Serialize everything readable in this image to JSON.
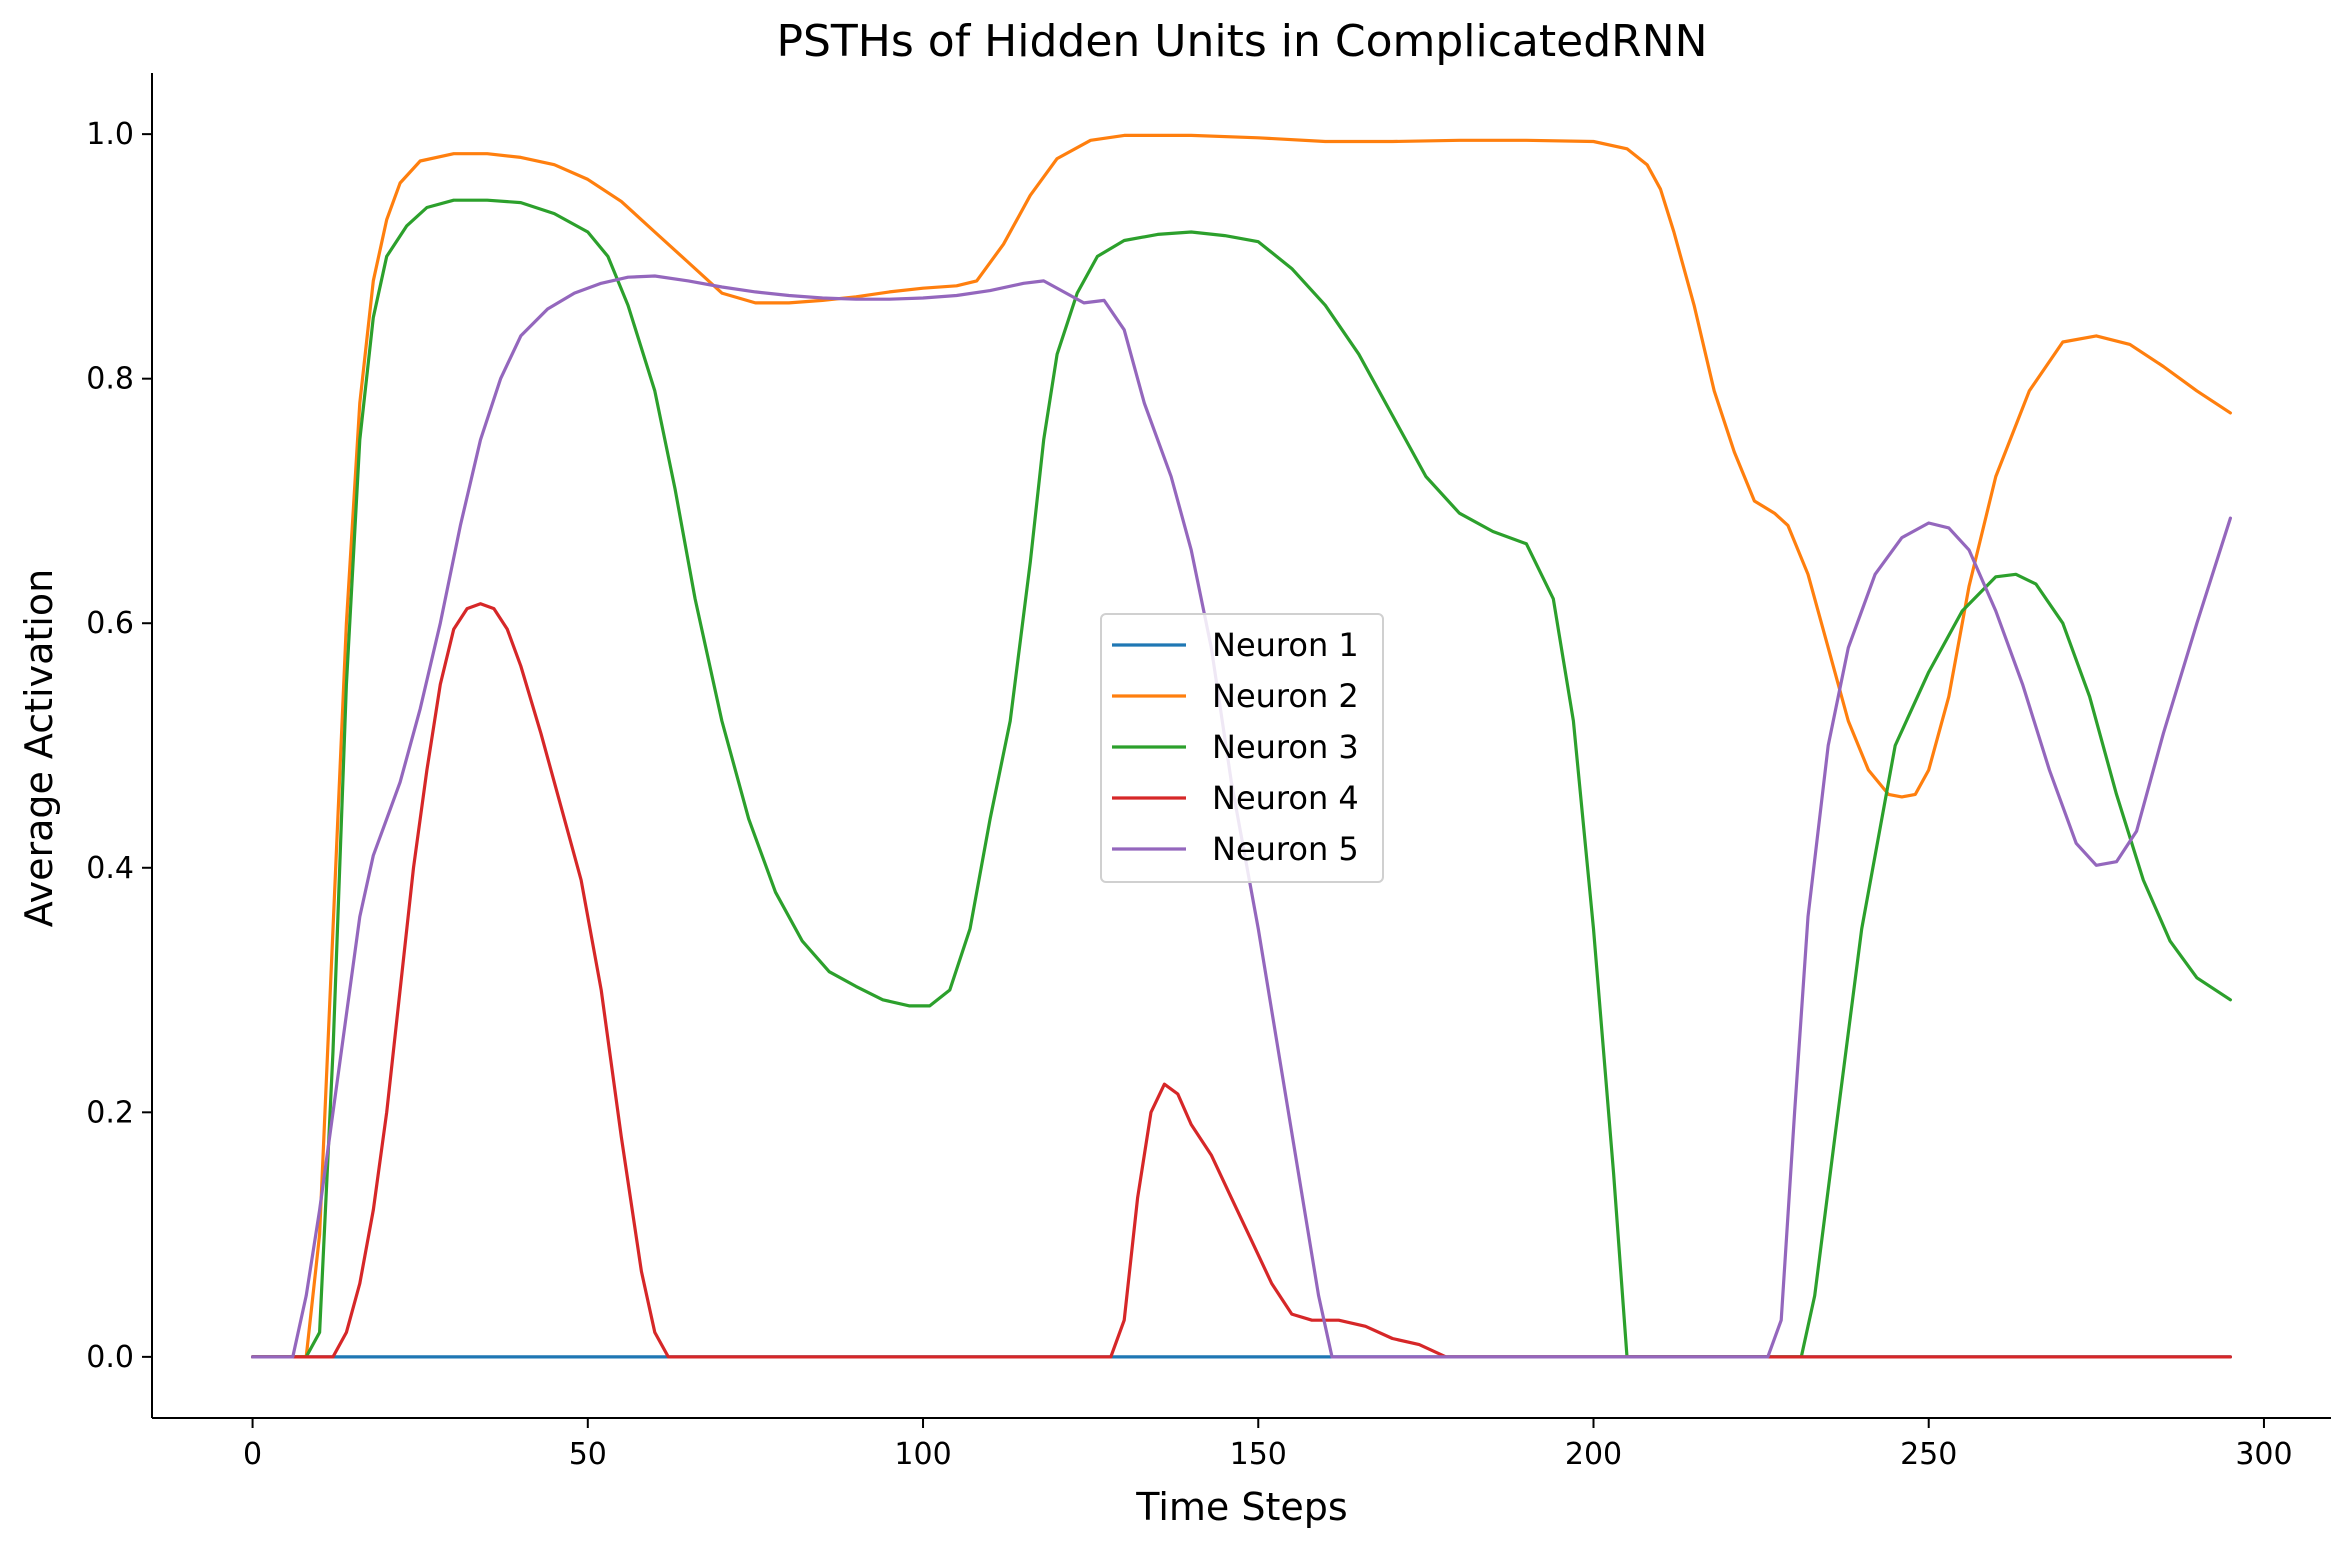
{
  "chart_data": {
    "type": "line",
    "title": "PSTHs of Hidden Units in ComplicatedRNN",
    "xlabel": "Time Steps",
    "ylabel": "Average Activation",
    "xlim": [
      -15,
      310
    ],
    "ylim": [
      -0.05,
      1.05
    ],
    "xticks": [
      0,
      50,
      100,
      150,
      200,
      250,
      300
    ],
    "yticks": [
      0.0,
      0.2,
      0.4,
      0.6,
      0.8,
      1.0
    ],
    "xtick_labels": [
      "0",
      "50",
      "100",
      "150",
      "200",
      "250",
      "300"
    ],
    "ytick_labels": [
      "0.0",
      "0.2",
      "0.4",
      "0.6",
      "0.8",
      "1.0"
    ],
    "grid": false,
    "legend_position": "center",
    "series": [
      {
        "name": "Neuron 1",
        "color": "#1f77b4",
        "points": [
          [
            0,
            0.0
          ],
          [
            295,
            0.0
          ]
        ]
      },
      {
        "name": "Neuron 2",
        "color": "#ff7f0e",
        "points": [
          [
            0,
            0.0
          ],
          [
            8,
            0.0
          ],
          [
            10,
            0.1
          ],
          [
            12,
            0.35
          ],
          [
            14,
            0.6
          ],
          [
            16,
            0.78
          ],
          [
            18,
            0.88
          ],
          [
            20,
            0.93
          ],
          [
            22,
            0.96
          ],
          [
            25,
            0.978
          ],
          [
            30,
            0.984
          ],
          [
            35,
            0.984
          ],
          [
            40,
            0.981
          ],
          [
            45,
            0.975
          ],
          [
            50,
            0.963
          ],
          [
            55,
            0.945
          ],
          [
            60,
            0.92
          ],
          [
            65,
            0.895
          ],
          [
            70,
            0.87
          ],
          [
            75,
            0.862
          ],
          [
            80,
            0.862
          ],
          [
            85,
            0.864
          ],
          [
            90,
            0.867
          ],
          [
            95,
            0.871
          ],
          [
            100,
            0.874
          ],
          [
            105,
            0.876
          ],
          [
            108,
            0.88
          ],
          [
            112,
            0.91
          ],
          [
            116,
            0.95
          ],
          [
            120,
            0.98
          ],
          [
            125,
            0.995
          ],
          [
            130,
            0.999
          ],
          [
            140,
            0.999
          ],
          [
            150,
            0.997
          ],
          [
            160,
            0.994
          ],
          [
            170,
            0.994
          ],
          [
            180,
            0.995
          ],
          [
            190,
            0.995
          ],
          [
            200,
            0.994
          ],
          [
            205,
            0.988
          ],
          [
            208,
            0.975
          ],
          [
            210,
            0.955
          ],
          [
            212,
            0.92
          ],
          [
            215,
            0.86
          ],
          [
            218,
            0.79
          ],
          [
            221,
            0.74
          ],
          [
            224,
            0.7
          ],
          [
            227,
            0.69
          ],
          [
            229,
            0.68
          ],
          [
            232,
            0.64
          ],
          [
            235,
            0.58
          ],
          [
            238,
            0.52
          ],
          [
            241,
            0.48
          ],
          [
            244,
            0.46
          ],
          [
            246,
            0.458
          ],
          [
            248,
            0.46
          ],
          [
            250,
            0.48
          ],
          [
            253,
            0.54
          ],
          [
            256,
            0.63
          ],
          [
            260,
            0.72
          ],
          [
            265,
            0.79
          ],
          [
            270,
            0.83
          ],
          [
            275,
            0.835
          ],
          [
            280,
            0.828
          ],
          [
            285,
            0.81
          ],
          [
            290,
            0.79
          ],
          [
            295,
            0.772
          ]
        ]
      },
      {
        "name": "Neuron 3",
        "color": "#2ca02c",
        "points": [
          [
            0,
            0.0
          ],
          [
            8,
            0.0
          ],
          [
            10,
            0.02
          ],
          [
            12,
            0.25
          ],
          [
            14,
            0.55
          ],
          [
            16,
            0.75
          ],
          [
            18,
            0.85
          ],
          [
            20,
            0.9
          ],
          [
            23,
            0.925
          ],
          [
            26,
            0.94
          ],
          [
            30,
            0.946
          ],
          [
            35,
            0.946
          ],
          [
            40,
            0.944
          ],
          [
            45,
            0.935
          ],
          [
            50,
            0.92
          ],
          [
            53,
            0.9
          ],
          [
            56,
            0.86
          ],
          [
            60,
            0.79
          ],
          [
            63,
            0.71
          ],
          [
            66,
            0.62
          ],
          [
            70,
            0.52
          ],
          [
            74,
            0.44
          ],
          [
            78,
            0.38
          ],
          [
            82,
            0.34
          ],
          [
            86,
            0.315
          ],
          [
            90,
            0.303
          ],
          [
            94,
            0.292
          ],
          [
            98,
            0.287
          ],
          [
            101,
            0.287
          ],
          [
            104,
            0.3
          ],
          [
            107,
            0.35
          ],
          [
            110,
            0.44
          ],
          [
            113,
            0.52
          ],
          [
            116,
            0.65
          ],
          [
            118,
            0.75
          ],
          [
            120,
            0.82
          ],
          [
            123,
            0.87
          ],
          [
            126,
            0.9
          ],
          [
            130,
            0.913
          ],
          [
            135,
            0.918
          ],
          [
            140,
            0.92
          ],
          [
            145,
            0.917
          ],
          [
            150,
            0.912
          ],
          [
            155,
            0.89
          ],
          [
            160,
            0.86
          ],
          [
            165,
            0.82
          ],
          [
            170,
            0.77
          ],
          [
            175,
            0.72
          ],
          [
            180,
            0.69
          ],
          [
            185,
            0.675
          ],
          [
            190,
            0.665
          ],
          [
            194,
            0.62
          ],
          [
            197,
            0.52
          ],
          [
            200,
            0.35
          ],
          [
            203,
            0.15
          ],
          [
            205,
            0.0
          ],
          [
            220,
            0.0
          ],
          [
            231,
            0.0
          ],
          [
            233,
            0.05
          ],
          [
            236,
            0.18
          ],
          [
            240,
            0.35
          ],
          [
            245,
            0.5
          ],
          [
            250,
            0.56
          ],
          [
            255,
            0.61
          ],
          [
            260,
            0.638
          ],
          [
            263,
            0.64
          ],
          [
            266,
            0.632
          ],
          [
            270,
            0.6
          ],
          [
            274,
            0.54
          ],
          [
            278,
            0.46
          ],
          [
            282,
            0.39
          ],
          [
            286,
            0.34
          ],
          [
            290,
            0.31
          ],
          [
            295,
            0.292
          ]
        ]
      },
      {
        "name": "Neuron 4",
        "color": "#d62728",
        "points": [
          [
            0,
            0.0
          ],
          [
            12,
            0.0
          ],
          [
            14,
            0.02
          ],
          [
            16,
            0.06
          ],
          [
            18,
            0.12
          ],
          [
            20,
            0.2
          ],
          [
            22,
            0.3
          ],
          [
            24,
            0.4
          ],
          [
            26,
            0.48
          ],
          [
            28,
            0.55
          ],
          [
            30,
            0.595
          ],
          [
            32,
            0.612
          ],
          [
            34,
            0.616
          ],
          [
            36,
            0.612
          ],
          [
            38,
            0.595
          ],
          [
            40,
            0.565
          ],
          [
            43,
            0.51
          ],
          [
            46,
            0.45
          ],
          [
            49,
            0.39
          ],
          [
            52,
            0.3
          ],
          [
            55,
            0.18
          ],
          [
            58,
            0.07
          ],
          [
            60,
            0.02
          ],
          [
            62,
            0.0
          ],
          [
            128,
            0.0
          ],
          [
            130,
            0.03
          ],
          [
            132,
            0.13
          ],
          [
            134,
            0.2
          ],
          [
            136,
            0.223
          ],
          [
            138,
            0.215
          ],
          [
            140,
            0.19
          ],
          [
            143,
            0.165
          ],
          [
            146,
            0.13
          ],
          [
            149,
            0.095
          ],
          [
            152,
            0.06
          ],
          [
            155,
            0.035
          ],
          [
            158,
            0.03
          ],
          [
            162,
            0.03
          ],
          [
            166,
            0.025
          ],
          [
            170,
            0.015
          ],
          [
            174,
            0.01
          ],
          [
            178,
            0.0
          ],
          [
            295,
            0.0
          ]
        ]
      },
      {
        "name": "Neuron 5",
        "color": "#9467bd",
        "points": [
          [
            0,
            0.0
          ],
          [
            6,
            0.0
          ],
          [
            8,
            0.05
          ],
          [
            10,
            0.12
          ],
          [
            12,
            0.2
          ],
          [
            14,
            0.28
          ],
          [
            16,
            0.36
          ],
          [
            18,
            0.41
          ],
          [
            20,
            0.44
          ],
          [
            22,
            0.47
          ],
          [
            25,
            0.53
          ],
          [
            28,
            0.6
          ],
          [
            31,
            0.68
          ],
          [
            34,
            0.75
          ],
          [
            37,
            0.8
          ],
          [
            40,
            0.835
          ],
          [
            44,
            0.857
          ],
          [
            48,
            0.87
          ],
          [
            52,
            0.878
          ],
          [
            56,
            0.883
          ],
          [
            60,
            0.884
          ],
          [
            65,
            0.88
          ],
          [
            70,
            0.875
          ],
          [
            75,
            0.871
          ],
          [
            80,
            0.868
          ],
          [
            85,
            0.866
          ],
          [
            90,
            0.865
          ],
          [
            95,
            0.865
          ],
          [
            100,
            0.866
          ],
          [
            105,
            0.868
          ],
          [
            110,
            0.872
          ],
          [
            115,
            0.878
          ],
          [
            118,
            0.88
          ],
          [
            121,
            0.871
          ],
          [
            124,
            0.862
          ],
          [
            127,
            0.864
          ],
          [
            130,
            0.84
          ],
          [
            133,
            0.78
          ],
          [
            137,
            0.72
          ],
          [
            140,
            0.66
          ],
          [
            143,
            0.58
          ],
          [
            146,
            0.47
          ],
          [
            150,
            0.35
          ],
          [
            153,
            0.25
          ],
          [
            156,
            0.15
          ],
          [
            159,
            0.05
          ],
          [
            161,
            0.0
          ],
          [
            226,
            0.0
          ],
          [
            228,
            0.03
          ],
          [
            230,
            0.2
          ],
          [
            232,
            0.36
          ],
          [
            235,
            0.5
          ],
          [
            238,
            0.58
          ],
          [
            242,
            0.64
          ],
          [
            246,
            0.67
          ],
          [
            250,
            0.682
          ],
          [
            253,
            0.678
          ],
          [
            256,
            0.66
          ],
          [
            260,
            0.61
          ],
          [
            264,
            0.55
          ],
          [
            268,
            0.48
          ],
          [
            272,
            0.42
          ],
          [
            275,
            0.402
          ],
          [
            278,
            0.405
          ],
          [
            281,
            0.43
          ],
          [
            285,
            0.51
          ],
          [
            290,
            0.6
          ],
          [
            295,
            0.686
          ]
        ]
      }
    ]
  }
}
